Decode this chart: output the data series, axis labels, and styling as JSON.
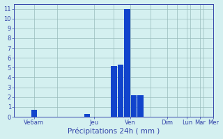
{
  "title": "Précipitations 24h ( mm )",
  "bar_color": "#1144cc",
  "bg_color": "#d4f0f0",
  "grid_color": "#99bbbb",
  "axis_color": "#3344aa",
  "text_color": "#3344aa",
  "ylim": [
    0,
    11.5
  ],
  "yticks": [
    0,
    1,
    2,
    3,
    4,
    5,
    6,
    7,
    8,
    9,
    10,
    11
  ],
  "xlim": [
    -0.5,
    14.5
  ],
  "bar_x": [
    1,
    5,
    7,
    7.5,
    8,
    8.5,
    9
  ],
  "bar_h": [
    0.7,
    0.3,
    5.2,
    5.3,
    11.0,
    2.2,
    2.2
  ],
  "bar_width": 0.45,
  "xtick_pos": [
    1,
    5.5,
    8.25,
    11,
    12.5,
    13.5,
    14.5
  ],
  "xtick_labels": [
    "Ve6am",
    "Jeu",
    "Ven",
    "Dim",
    "Lun",
    "Mar",
    "Mer"
  ],
  "vline_pos": [
    2.75,
    7.0,
    9.75,
    11.75,
    12.75,
    13.75
  ],
  "title_fontsize": 7.5,
  "tick_fontsize": 6.0
}
